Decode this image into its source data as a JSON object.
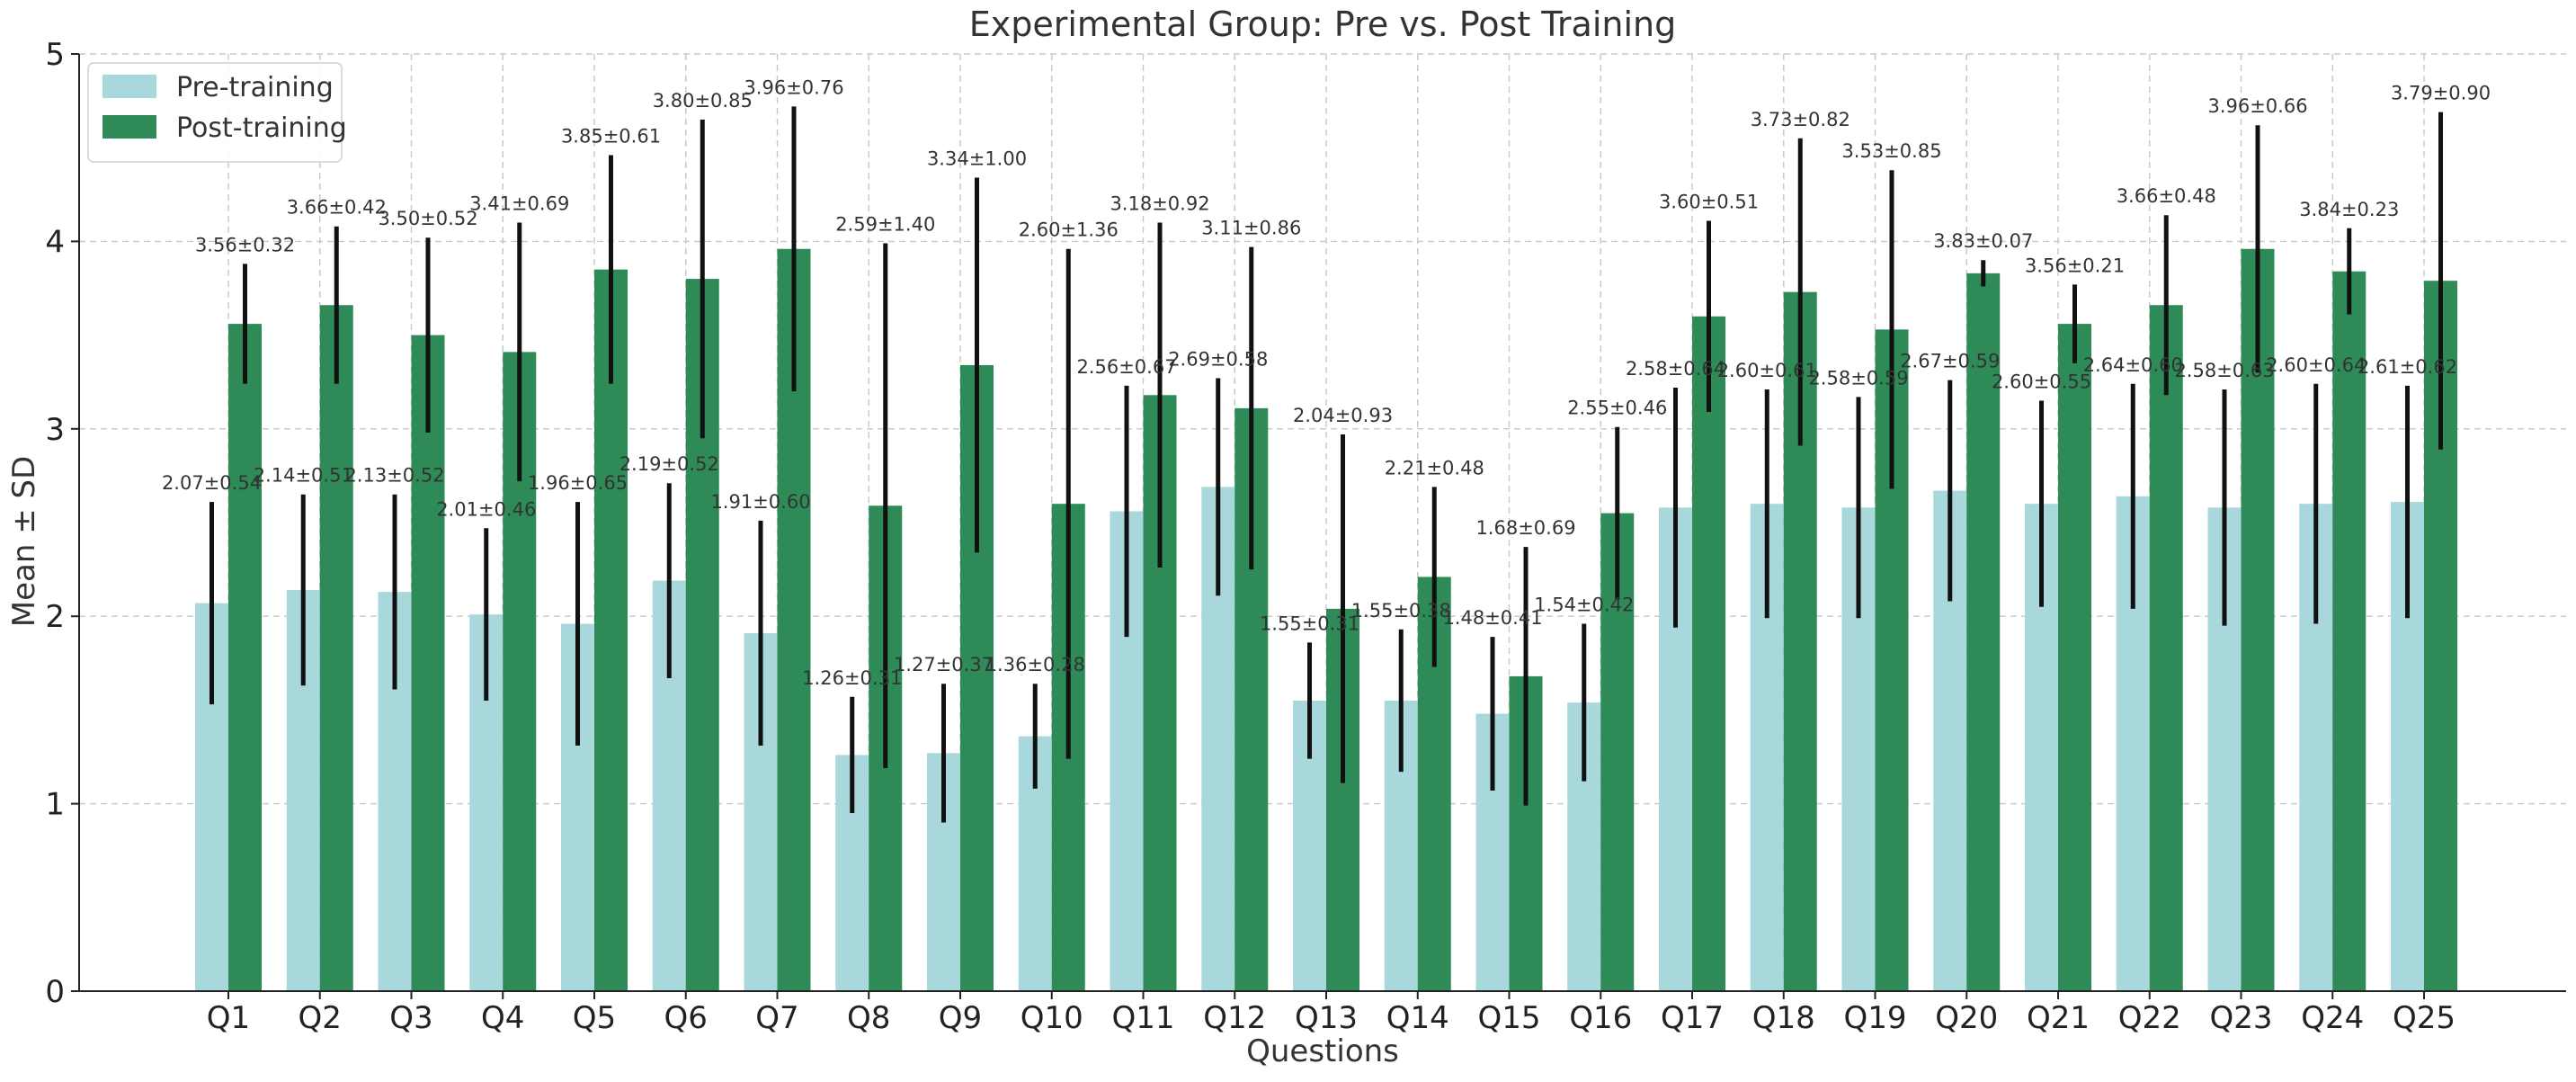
{
  "chart_data": {
    "type": "bar",
    "title": "Experimental Group: Pre vs. Post Training",
    "xlabel": "Questions",
    "ylabel": "Mean ± SD",
    "ylim": [
      0,
      5
    ],
    "yticks": [
      0,
      1,
      2,
      3,
      4,
      5
    ],
    "grid": true,
    "legend_position": "top-left",
    "categories": [
      "Q1",
      "Q2",
      "Q3",
      "Q4",
      "Q5",
      "Q6",
      "Q7",
      "Q8",
      "Q9",
      "Q10",
      "Q11",
      "Q12",
      "Q13",
      "Q14",
      "Q15",
      "Q16",
      "Q17",
      "Q18",
      "Q19",
      "Q20",
      "Q21",
      "Q22",
      "Q23",
      "Q24",
      "Q25"
    ],
    "series": [
      {
        "name": "Pre-training",
        "color": "#a8d8dc",
        "values": [
          2.07,
          2.14,
          2.13,
          2.01,
          1.96,
          2.19,
          1.91,
          1.26,
          1.27,
          1.36,
          2.56,
          2.69,
          1.55,
          1.55,
          1.48,
          1.54,
          2.58,
          2.6,
          2.58,
          2.67,
          2.6,
          2.64,
          2.58,
          2.6,
          2.61
        ],
        "sd": [
          0.54,
          0.51,
          0.52,
          0.46,
          0.65,
          0.52,
          0.6,
          0.31,
          0.37,
          0.28,
          0.67,
          0.58,
          0.31,
          0.38,
          0.41,
          0.42,
          0.64,
          0.61,
          0.59,
          0.59,
          0.55,
          0.6,
          0.63,
          0.64,
          0.62
        ],
        "labels": [
          "2.07±0.54",
          "2.14±0.51",
          "2.13±0.52",
          "2.01±0.46",
          "1.96±0.65",
          "2.19±0.52",
          "1.91±0.60",
          "1.26±0.31",
          "1.27±0.37",
          "1.36±0.28",
          "2.56±0.67",
          "2.69±0.58",
          "1.55±0.31",
          "1.55±0.38",
          "1.48±0.41",
          "1.54±0.42",
          "2.58±0.64",
          "2.60±0.61",
          "2.58±0.59",
          "2.67±0.59",
          "2.60±0.55",
          "2.64±0.60",
          "2.58±0.63",
          "2.60±0.64",
          "2.61±0.62"
        ]
      },
      {
        "name": "Post-training",
        "color": "#2e8b57",
        "values": [
          3.56,
          3.66,
          3.5,
          3.41,
          3.85,
          3.8,
          3.96,
          2.59,
          3.34,
          2.6,
          3.18,
          3.11,
          2.04,
          2.21,
          1.68,
          2.55,
          3.6,
          3.73,
          3.53,
          3.83,
          3.56,
          3.66,
          3.96,
          3.84,
          3.79
        ],
        "sd": [
          0.32,
          0.42,
          0.52,
          0.69,
          0.61,
          0.85,
          0.76,
          1.4,
          1.0,
          1.36,
          0.92,
          0.86,
          0.93,
          0.48,
          0.69,
          0.46,
          0.51,
          0.82,
          0.85,
          0.07,
          0.21,
          0.48,
          0.66,
          0.23,
          0.9
        ],
        "labels": [
          "3.56±0.32",
          "3.66±0.42",
          "3.50±0.52",
          "3.41±0.69",
          "3.85±0.61",
          "3.80±0.85",
          "3.96±0.76",
          "2.59±1.40",
          "3.34±1.00",
          "2.60±1.36",
          "3.18±0.92",
          "3.11±0.86",
          "2.04±0.93",
          "2.21±0.48",
          "1.68±0.69",
          "2.55±0.46",
          "3.60±0.51",
          "3.73±0.82",
          "3.53±0.85",
          "3.83±0.07",
          "3.56±0.21",
          "3.66±0.48",
          "3.96±0.66",
          "3.84±0.23",
          "3.79±0.90"
        ]
      }
    ]
  }
}
